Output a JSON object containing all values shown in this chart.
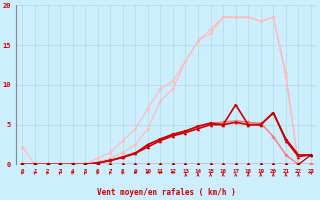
{
  "xlabel": "Vent moyen/en rafales ( km/h )",
  "xlim": [
    -0.5,
    23.5
  ],
  "ylim": [
    0,
    20
  ],
  "yticks": [
    0,
    5,
    10,
    15,
    20
  ],
  "xticks": [
    0,
    1,
    2,
    3,
    4,
    5,
    6,
    7,
    8,
    9,
    10,
    11,
    12,
    13,
    14,
    15,
    16,
    17,
    18,
    19,
    20,
    21,
    22,
    23
  ],
  "bg_color": "#cceeff",
  "grid_color": "#aadddd",
  "axis_color": "#cc0000",
  "text_color": "#cc0000",
  "lines": [
    {
      "x": [
        0,
        1,
        2,
        3,
        4,
        5,
        6,
        7,
        8,
        9,
        10,
        11,
        12,
        13,
        14,
        15,
        16,
        17,
        18,
        19,
        20,
        21,
        22,
        23
      ],
      "y": [
        0,
        0,
        0,
        0,
        0,
        0,
        0.3,
        0.8,
        1.5,
        2.5,
        4.5,
        8.0,
        9.5,
        13.0,
        15.5,
        16.5,
        18.5,
        18.5,
        18.5,
        18.0,
        18.5,
        11.5,
        0,
        0
      ],
      "color": "#ffbbbb",
      "lw": 0.9,
      "marker": "D",
      "ms": 2.0
    },
    {
      "x": [
        0,
        1,
        2,
        3,
        4,
        5,
        6,
        7,
        8,
        9,
        10,
        11,
        12,
        13,
        14,
        15,
        16,
        17,
        18,
        19,
        20,
        21,
        22,
        23
      ],
      "y": [
        0,
        0,
        0,
        0,
        0,
        0,
        0.8,
        1.5,
        3.0,
        4.5,
        7.0,
        9.5,
        10.5,
        13.0,
        15.5,
        17.0,
        18.5,
        18.5,
        18.5,
        18.0,
        18.5,
        11.0,
        0,
        0
      ],
      "color": "#ffbbbb",
      "lw": 0.9,
      "marker": "D",
      "ms": 2.0
    },
    {
      "x": [
        0,
        1,
        2,
        3,
        4,
        5,
        6,
        7,
        8,
        9,
        10,
        11,
        12,
        13,
        14,
        15,
        16,
        17,
        18,
        19,
        20,
        21,
        22,
        23
      ],
      "y": [
        2.2,
        0,
        0,
        0,
        0,
        0,
        0,
        0,
        0,
        0,
        0,
        0,
        0,
        0,
        0,
        0,
        0,
        0,
        0,
        0,
        0,
        0,
        0,
        0
      ],
      "color": "#ffbbbb",
      "lw": 0.9,
      "marker": "D",
      "ms": 2.0
    },
    {
      "x": [
        0,
        1,
        2,
        3,
        4,
        5,
        6,
        7,
        8,
        9,
        10,
        11,
        12,
        13,
        14,
        15,
        16,
        17,
        18,
        19,
        20,
        21,
        22,
        23
      ],
      "y": [
        0,
        0,
        0,
        0,
        0,
        0,
        0,
        0,
        0,
        0,
        0,
        0,
        0,
        0,
        0,
        0,
        0,
        0,
        0,
        0,
        0,
        0,
        0,
        1.2
      ],
      "color": "#ffbbbb",
      "lw": 0.9,
      "marker": "D",
      "ms": 2.0
    },
    {
      "x": [
        0,
        1,
        2,
        3,
        4,
        5,
        6,
        7,
        8,
        9,
        10,
        11,
        12,
        13,
        14,
        15,
        16,
        17,
        18,
        19,
        20,
        21,
        22,
        23
      ],
      "y": [
        0,
        0,
        0,
        0,
        0,
        0,
        0.2,
        0.5,
        1.0,
        1.5,
        2.5,
        3.2,
        3.8,
        4.2,
        4.8,
        5.2,
        5.3,
        5.5,
        5.3,
        5.2,
        3.5,
        1.2,
        0,
        0
      ],
      "color": "#ff7777",
      "lw": 1.0,
      "marker": "D",
      "ms": 2.2
    },
    {
      "x": [
        0,
        1,
        2,
        3,
        4,
        5,
        6,
        7,
        8,
        9,
        10,
        11,
        12,
        13,
        14,
        15,
        16,
        17,
        18,
        19,
        20,
        21,
        22,
        23
      ],
      "y": [
        0,
        0,
        0,
        0,
        0,
        0,
        0.2,
        0.5,
        0.9,
        1.4,
        2.2,
        3.0,
        3.6,
        4.0,
        4.5,
        5.0,
        5.0,
        5.3,
        5.0,
        5.0,
        6.5,
        3.0,
        1.0,
        1.2
      ],
      "color": "#cc0000",
      "lw": 1.2,
      "marker": "^",
      "ms": 2.5
    },
    {
      "x": [
        0,
        1,
        2,
        3,
        4,
        5,
        6,
        7,
        8,
        9,
        10,
        11,
        12,
        13,
        14,
        15,
        16,
        17,
        18,
        19,
        20,
        21,
        22,
        23
      ],
      "y": [
        0,
        0,
        0,
        0,
        0,
        0,
        0.2,
        0.5,
        0.9,
        1.4,
        2.5,
        3.2,
        3.8,
        4.2,
        4.8,
        5.2,
        5.0,
        7.5,
        5.0,
        5.0,
        6.5,
        3.2,
        1.2,
        1.2
      ],
      "color": "#cc0000",
      "lw": 1.2,
      "marker": ">",
      "ms": 2.5
    },
    {
      "x": [
        0,
        1,
        2,
        3,
        4,
        5,
        6,
        7,
        8,
        9,
        10,
        11,
        12,
        13,
        14,
        15,
        16,
        17,
        18,
        19,
        20,
        21,
        22,
        23
      ],
      "y": [
        0,
        0,
        0,
        0,
        0,
        0,
        0,
        0,
        0,
        0,
        0,
        0,
        0,
        0,
        0,
        0,
        0,
        0,
        0,
        0,
        0,
        0,
        0,
        1.2
      ],
      "color": "#880000",
      "lw": 0.8,
      "marker": "D",
      "ms": 1.8
    }
  ],
  "wind_arrows_x": [
    0,
    1,
    2,
    3,
    4,
    5,
    6,
    7,
    8,
    9,
    10,
    11,
    12,
    13,
    14,
    15,
    16,
    17,
    18,
    19,
    20,
    21,
    22,
    23
  ],
  "arrow_angles": [
    225,
    225,
    225,
    225,
    225,
    225,
    225,
    225,
    225,
    200,
    200,
    200,
    200,
    190,
    180,
    180,
    180,
    180,
    180,
    180,
    180,
    180,
    180,
    135
  ]
}
